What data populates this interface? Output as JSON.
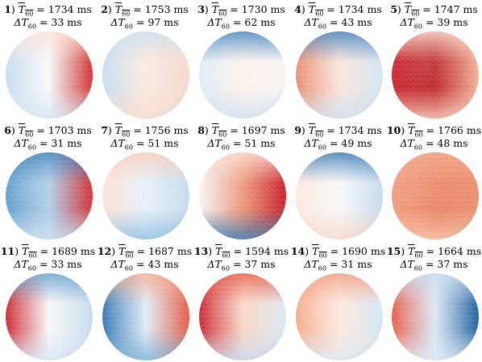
{
  "panels": [
    {
      "num": "1",
      "mean": "1734",
      "delta": "33",
      "colors": {
        "left": "#c6dbef",
        "center": "#f7f7f7",
        "right": "#d32f2f",
        "top": "#fde0d2",
        "bottom": "#d6e6f4"
      }
    },
    {
      "num": "2",
      "mean": "1753",
      "delta": "97",
      "colors": {
        "left": "#c6dbef",
        "center": "#fbe7dc",
        "right": "#f4d9cc",
        "top": "#c9def0",
        "bottom": "#f6dcd0"
      }
    },
    {
      "num": "3",
      "mean": "1730",
      "delta": "62",
      "colors": {
        "left": "#dce9f5",
        "center": "#fdf1ea",
        "right": "#f5f5f5",
        "top": "#3c7fba",
        "bottom": "#cfe1f2"
      }
    },
    {
      "num": "4",
      "mean": "1734",
      "delta": "43",
      "colors": {
        "left": "#e98a6c",
        "center": "#f7e2d8",
        "right": "#d6e6f4",
        "top": "#3a7cb8",
        "bottom": "#cfe1f2"
      }
    },
    {
      "num": "5",
      "mean": "1747",
      "delta": "39",
      "colors": {
        "left": "#c8202a",
        "center": "#b71c1c",
        "right": "#f4b59a",
        "top": "#fde0d2",
        "bottom": "#f9d3c1"
      }
    },
    {
      "num": "6",
      "mean": "1703",
      "delta": "31",
      "colors": {
        "left": "#5d9ccc",
        "center": "#a8cbe6",
        "right": "#d32f2f",
        "top": "#3c7fba",
        "bottom": "#cfe1f2"
      }
    },
    {
      "num": "7",
      "mean": "1756",
      "delta": "51",
      "colors": {
        "left": "#fde0d2",
        "center": "#e3eef8",
        "right": "#c6dbef",
        "top": "#f9cbb5",
        "bottom": "#8fbfe0"
      }
    },
    {
      "num": "8",
      "mean": "1697",
      "delta": "51",
      "colors": {
        "left": "#f5f5f5",
        "center": "#ea8f70",
        "right": "#c8202a",
        "top": "#fde0d2",
        "bottom": "#3a7cb8"
      }
    },
    {
      "num": "9",
      "mean": "1734",
      "delta": "49",
      "colors": {
        "left": "#fbe7dc",
        "center": "#f7f7f7",
        "right": "#c6dbef",
        "top": "#2f73b0",
        "bottom": "#f9d8c8"
      }
    },
    {
      "num": "10",
      "mean": "1766",
      "delta": "48",
      "colors": {
        "left": "#f09a7a",
        "center": "#e97c5a",
        "right": "#ec9070",
        "top": "#f4a98a",
        "bottom": "#f7c8b0"
      }
    },
    {
      "num": "11",
      "mean": "1689",
      "delta": "33",
      "colors": {
        "left": "#c8202a",
        "center": "#f7f7f7",
        "right": "#c6dbef",
        "top": "#5d9ccc",
        "bottom": "#d6e6f4"
      }
    },
    {
      "num": "12",
      "mean": "1687",
      "delta": "43",
      "colors": {
        "left": "#2f73b0",
        "center": "#dce9f5",
        "right": "#e65a43",
        "top": "#f4a98a",
        "bottom": "#7fb3da"
      }
    },
    {
      "num": "13",
      "mean": "1594",
      "delta": "37",
      "colors": {
        "left": "#c8202a",
        "center": "#f8d2c0",
        "right": "#dce9f5",
        "top": "#e65a43",
        "bottom": "#c6dbef"
      }
    },
    {
      "num": "14",
      "mean": "1690",
      "delta": "31",
      "colors": {
        "left": "#f4a98a",
        "center": "#fde6da",
        "right": "#d6e6f4",
        "top": "#f09a7a",
        "bottom": "#dce9f5"
      }
    },
    {
      "num": "15",
      "mean": "1664",
      "delta": "37",
      "colors": {
        "left": "#e65a43",
        "center": "#d6e6f4",
        "right": "#1f5f9e",
        "top": "#c6dbef",
        "bottom": "#dce9f5"
      }
    }
  ],
  "unit": "ms"
}
